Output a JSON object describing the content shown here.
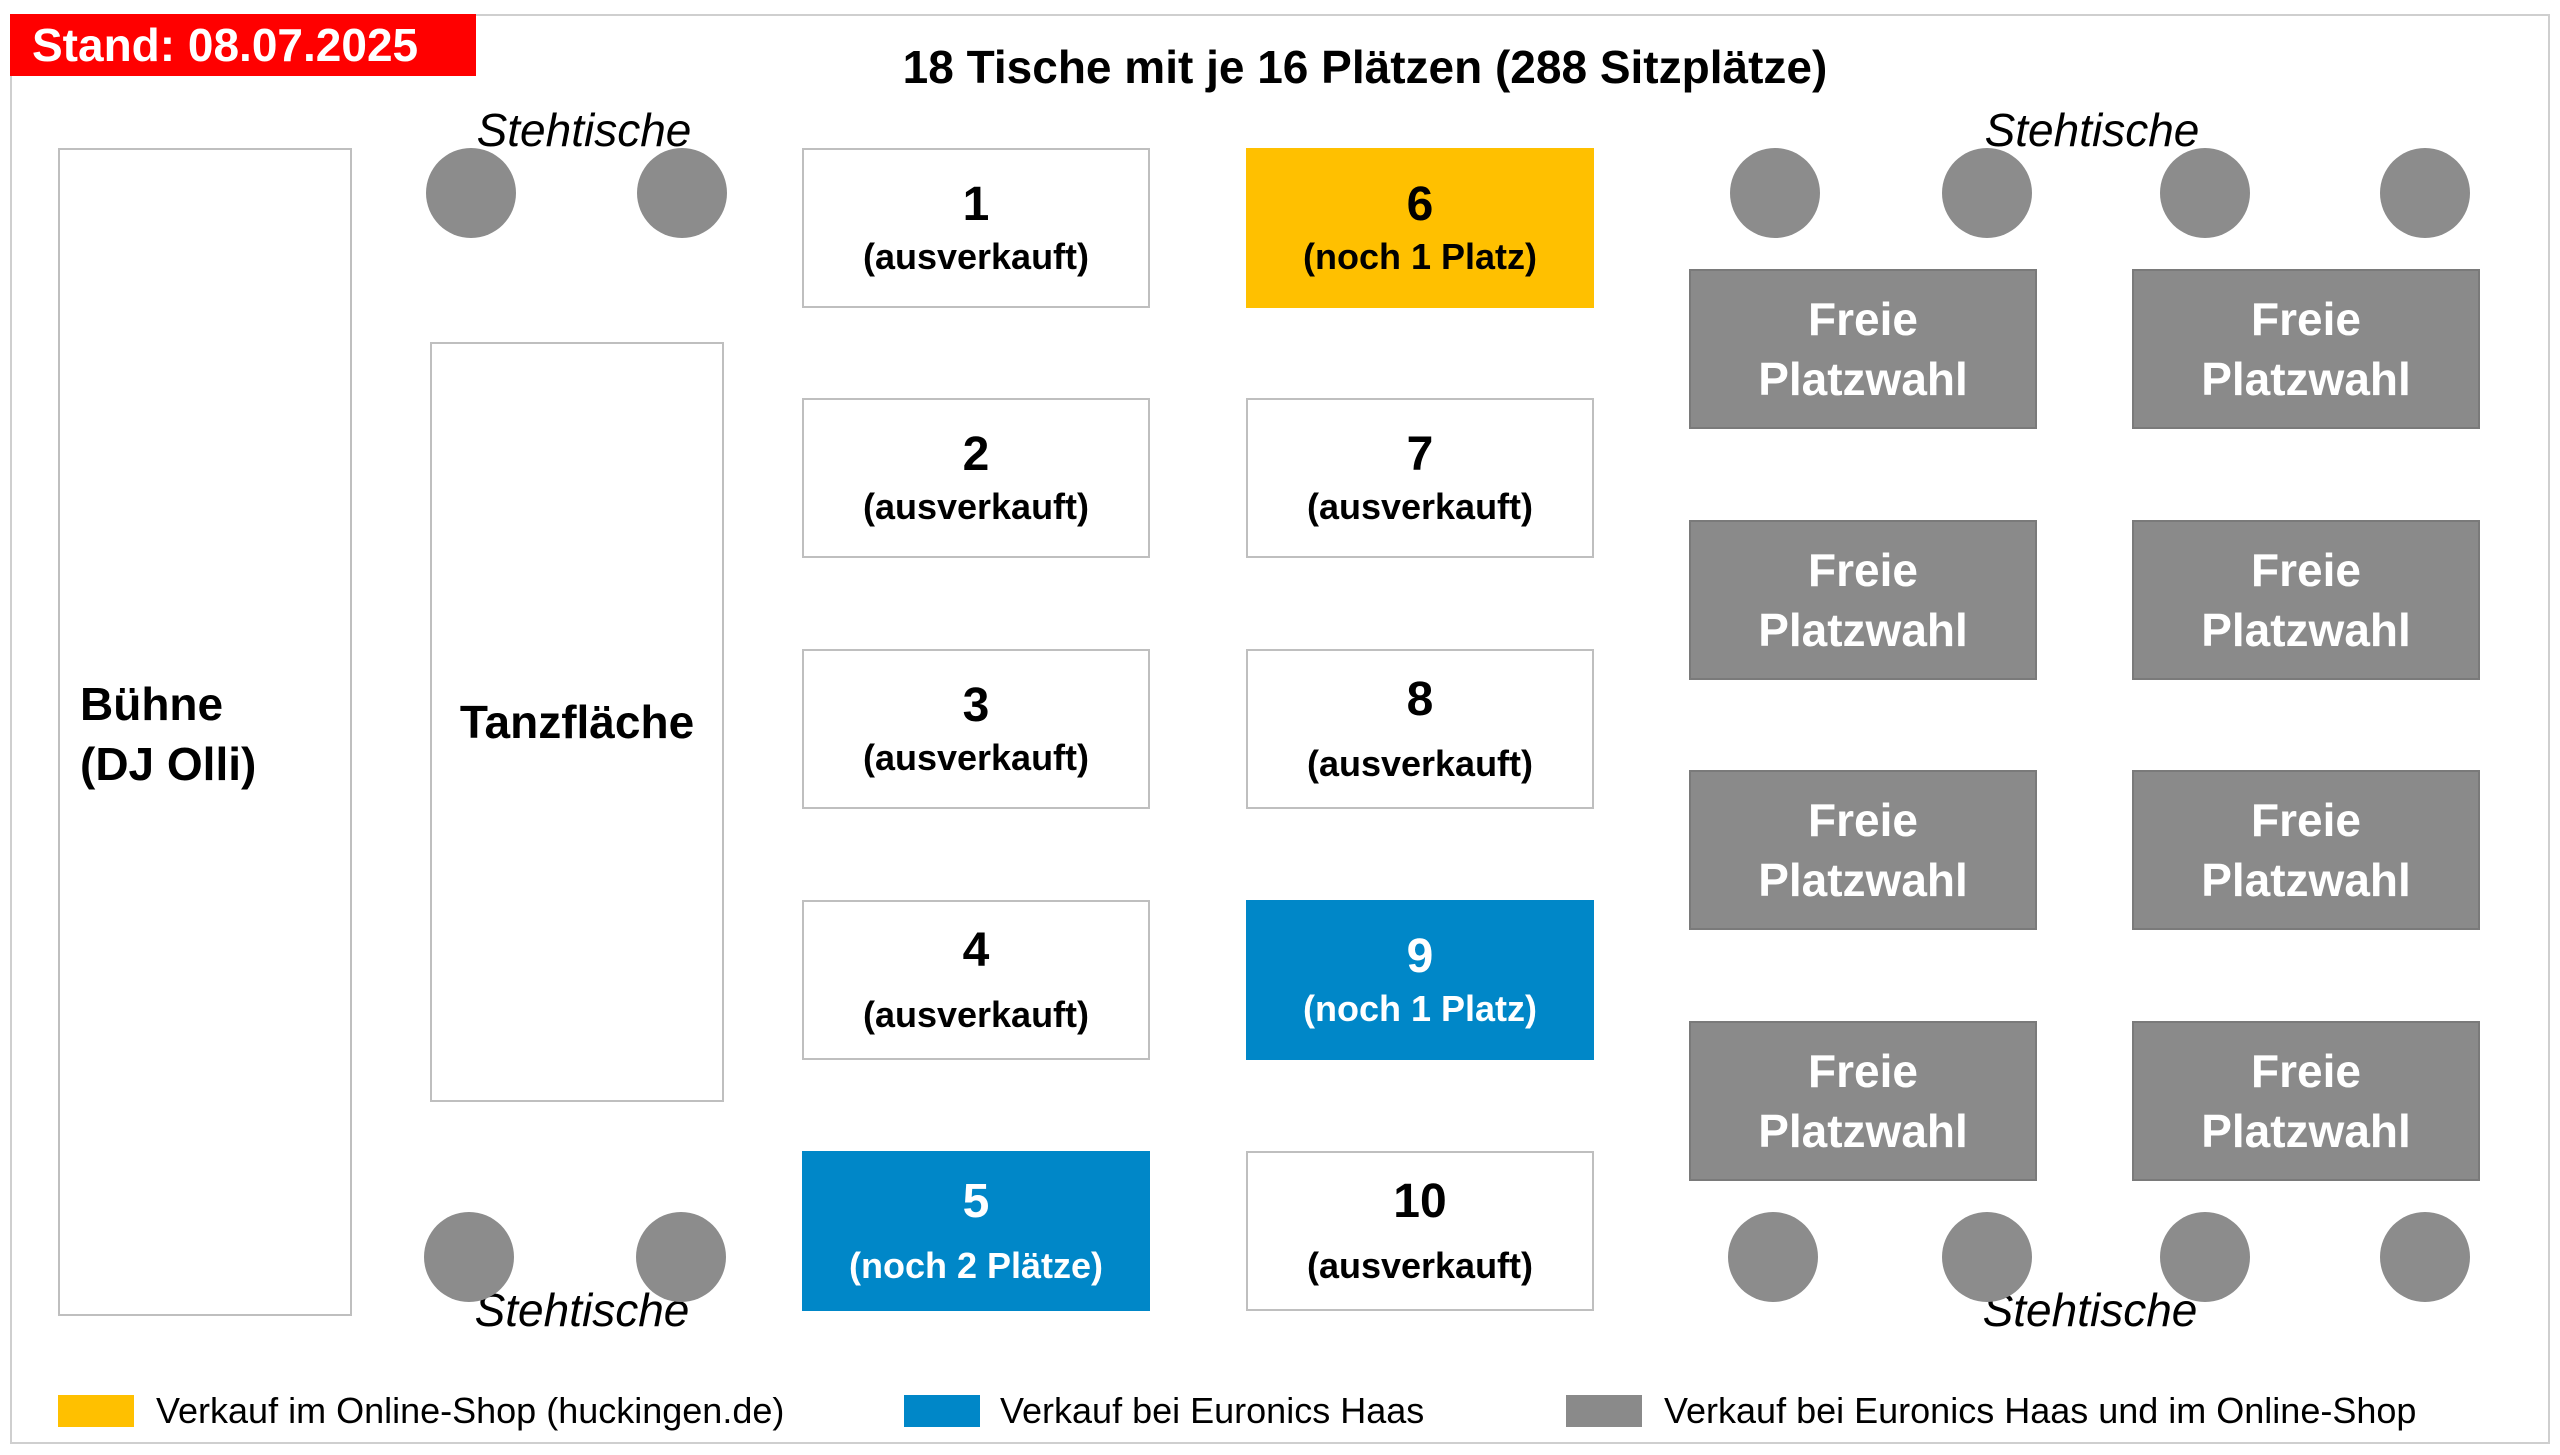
{
  "stand": "Stand: 08.07.2025",
  "title": "18 Tische mit je 16 Plätzen (288 Sitzplätze)",
  "stage": {
    "line1": "Bühne",
    "line2": "(DJ Olli)"
  },
  "dance_floor": "Tanzfläche",
  "stehtische_label": "Stehtische",
  "tables": [
    {
      "number": "1",
      "status": "(ausverkauft)"
    },
    {
      "number": "2",
      "status": "(ausverkauft)"
    },
    {
      "number": "3",
      "status": "(ausverkauft)"
    },
    {
      "number": "4",
      "status": "(ausverkauft)"
    },
    {
      "number": "5",
      "status": "(noch 2 Plätze)"
    },
    {
      "number": "6",
      "status": "(noch 1 Platz)"
    },
    {
      "number": "7",
      "status": "(ausverkauft)"
    },
    {
      "number": "8",
      "status": "(ausverkauft)"
    },
    {
      "number": "9",
      "status": "(noch 1 Platz)"
    },
    {
      "number": "10",
      "status": "(ausverkauft)"
    }
  ],
  "free_seating": {
    "line1": "Freie",
    "line2": "Platzwahl"
  },
  "legend": [
    {
      "color": "#ffc000",
      "text": "Verkauf im Online-Shop (huckingen.de)"
    },
    {
      "color": "#0087c8",
      "text": "Verkauf bei Euronics Haas"
    },
    {
      "color": "#8a8a8a",
      "text": "Verkauf bei Euronics Haas und im Online-Shop"
    }
  ]
}
